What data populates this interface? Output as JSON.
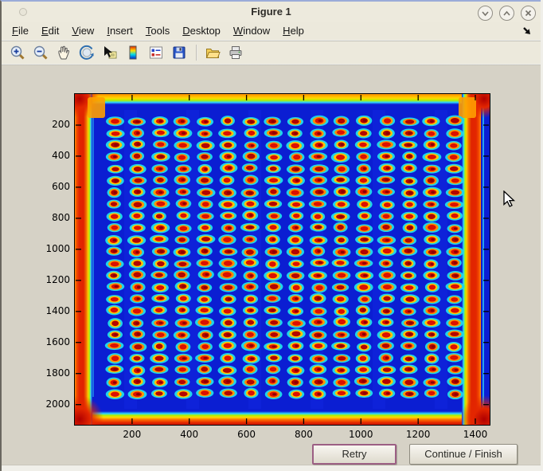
{
  "window": {
    "title": "Figure 1",
    "controls": [
      {
        "name": "shade-button",
        "glyph": "chevron-down"
      },
      {
        "name": "unshade-button",
        "glyph": "chevron-up"
      },
      {
        "name": "close-button",
        "glyph": "x"
      }
    ]
  },
  "menu": {
    "items": [
      "File",
      "Edit",
      "View",
      "Insert",
      "Tools",
      "Desktop",
      "Window",
      "Help"
    ],
    "overflow_arrow": "arrow-down-right-icon"
  },
  "toolbar": {
    "icons": [
      "zoom-in-icon",
      "zoom-out-icon",
      "pan-hand-icon",
      "rotate-3d-icon",
      "data-cursor-icon",
      "colorbar-icon",
      "insert-legend-icon",
      "save-icon",
      "open-folder-icon",
      "print-icon"
    ]
  },
  "buttons": {
    "retry": "Retry",
    "continue": "Continue / Finish"
  },
  "chart_data": {
    "type": "heatmap",
    "title": "",
    "xlabel": "",
    "ylabel": "",
    "x_ticks": [
      200,
      400,
      600,
      800,
      1000,
      1200,
      1400
    ],
    "y_ticks": [
      200,
      400,
      600,
      800,
      1000,
      1200,
      1400,
      1600,
      1800,
      2000
    ],
    "x_range": [
      0,
      1450
    ],
    "y_range": [
      0,
      2130
    ],
    "y_direction": "down",
    "grid": false,
    "colormap": "jet",
    "image_description": "Jet-colormap intensity scan of a 384-well microplate: deep blue field, 16 x 24 grid of wells rendered as red centers with yellow-orange rings and cyan halos, orange-red glow along the plate edges and corners",
    "wells": {
      "rows": 24,
      "cols": 16,
      "x0": 139,
      "dx": 79.2,
      "y0": 175,
      "dy": 76.3
    },
    "palette": {
      "background": "#0b1ed2",
      "halo": "#1fd4ea",
      "ring_yellow": "#ffc400",
      "ring_orange": "#ff8a00",
      "center_red": "#dc1000",
      "core_dark_red": "#8c0000",
      "edge_red": "#e02400",
      "edge_orange": "#ff8b00"
    }
  }
}
